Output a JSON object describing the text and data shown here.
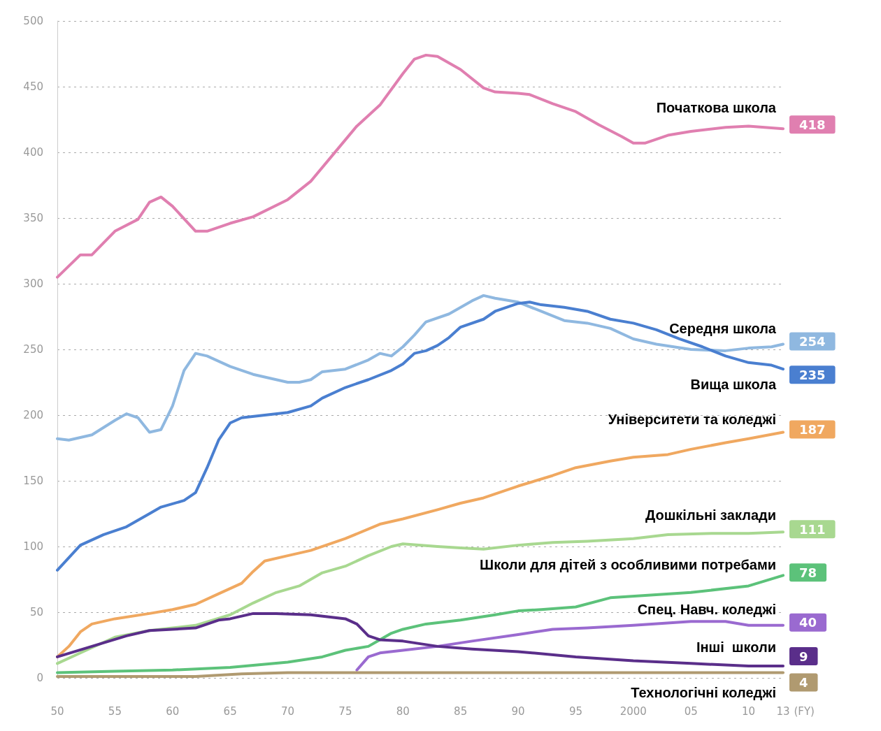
{
  "chart_data": {
    "type": "line",
    "xlim": [
      1950,
      2013
    ],
    "ylim": [
      0,
      500
    ],
    "xticks": [
      {
        "value": 1950,
        "label": "50"
      },
      {
        "value": 1955,
        "label": "55"
      },
      {
        "value": 1960,
        "label": "60"
      },
      {
        "value": 1965,
        "label": "65"
      },
      {
        "value": 1970,
        "label": "70"
      },
      {
        "value": 1975,
        "label": "75"
      },
      {
        "value": 1980,
        "label": "80"
      },
      {
        "value": 1985,
        "label": "85"
      },
      {
        "value": 1990,
        "label": "90"
      },
      {
        "value": 1995,
        "label": "95"
      },
      {
        "value": 2000,
        "label": "2000"
      },
      {
        "value": 2005,
        "label": "05"
      },
      {
        "value": 2010,
        "label": "10"
      },
      {
        "value": 2013,
        "label": "13"
      }
    ],
    "xlabel": "(FY)",
    "yticks": [
      0,
      50,
      100,
      150,
      200,
      250,
      300,
      350,
      400,
      450,
      500
    ],
    "grid": "y",
    "legend": "right",
    "line_style": "solid",
    "series": [
      {
        "name": "Початкова школа",
        "color": "#e07fb0",
        "x": [
          1950,
          1952,
          1953,
          1955,
          1957,
          1958,
          1959,
          1960,
          1962,
          1963,
          1965,
          1967,
          1970,
          1972,
          1974,
          1976,
          1978,
          1980,
          1981,
          1982,
          1983,
          1985,
          1987,
          1988,
          1990,
          1991,
          1993,
          1995,
          1997,
          1999,
          2000,
          2001,
          2003,
          2005,
          2008,
          2010,
          2013
        ],
        "values": [
          305,
          322,
          322,
          340,
          349,
          362,
          366,
          359,
          340,
          340,
          346,
          351,
          364,
          378,
          399,
          420,
          436,
          460,
          471,
          474,
          473,
          463,
          449,
          446,
          445,
          444,
          437,
          431,
          421,
          412,
          407,
          407,
          413,
          416,
          419,
          420,
          418
        ],
        "value_labels": [
          null,
          null,
          null,
          null,
          null,
          null,
          null,
          null,
          null,
          null,
          null,
          null,
          null,
          null,
          null,
          null,
          null,
          null,
          null,
          null,
          null,
          null,
          null,
          null,
          null,
          null,
          null,
          null,
          null,
          null,
          null,
          null,
          null,
          null,
          null,
          null,
          "418"
        ]
      },
      {
        "name": "Середня школа",
        "color": "#8fb8e0",
        "x": [
          1950,
          1951,
          1953,
          1955,
          1956,
          1957,
          1958,
          1959,
          1960,
          1961,
          1962,
          1963,
          1965,
          1967,
          1969,
          1970,
          1971,
          1972,
          1973,
          1975,
          1977,
          1978,
          1979,
          1980,
          1981,
          1982,
          1984,
          1986,
          1987,
          1988,
          1990,
          1992,
          1994,
          1996,
          1998,
          2000,
          2002,
          2005,
          2008,
          2010,
          2012,
          2013
        ],
        "values": [
          182,
          181,
          185,
          196,
          201,
          198,
          187,
          189,
          207,
          234,
          247,
          245,
          237,
          231,
          227,
          225,
          225,
          227,
          233,
          235,
          242,
          247,
          245,
          252,
          261,
          271,
          277,
          287,
          291,
          289,
          286,
          279,
          272,
          270,
          266,
          258,
          254,
          250,
          249,
          251,
          252,
          254
        ],
        "value_labels": [
          null,
          null,
          null,
          null,
          null,
          null,
          null,
          null,
          null,
          null,
          null,
          null,
          null,
          null,
          null,
          null,
          null,
          null,
          null,
          null,
          null,
          null,
          null,
          null,
          null,
          null,
          null,
          null,
          null,
          null,
          null,
          null,
          null,
          null,
          null,
          null,
          null,
          null,
          null,
          null,
          null,
          "254"
        ]
      },
      {
        "name": "Вища школа",
        "color": "#4a7fd0",
        "x": [
          1950,
          1952,
          1954,
          1956,
          1958,
          1959,
          1961,
          1962,
          1963,
          1964,
          1965,
          1966,
          1968,
          1970,
          1972,
          1973,
          1975,
          1977,
          1979,
          1980,
          1981,
          1982,
          1983,
          1984,
          1985,
          1987,
          1988,
          1990,
          1991,
          1992,
          1994,
          1996,
          1998,
          2000,
          2002,
          2004,
          2006,
          2008,
          2010,
          2012,
          2013
        ],
        "values": [
          82,
          101,
          109,
          115,
          125,
          130,
          135,
          141,
          160,
          181,
          194,
          198,
          200,
          202,
          207,
          213,
          221,
          227,
          234,
          239,
          247,
          249,
          253,
          259,
          267,
          273,
          279,
          285,
          286,
          284,
          282,
          279,
          273,
          270,
          265,
          258,
          252,
          245,
          240,
          238,
          235
        ],
        "value_labels": [
          null,
          null,
          null,
          null,
          null,
          null,
          null,
          null,
          null,
          null,
          null,
          null,
          null,
          null,
          null,
          null,
          null,
          null,
          null,
          null,
          null,
          null,
          null,
          null,
          null,
          null,
          null,
          null,
          null,
          null,
          null,
          null,
          null,
          null,
          null,
          null,
          null,
          null,
          null,
          null,
          "235"
        ]
      },
      {
        "name": "Університети та коледжі",
        "color": "#f0a860",
        "x": [
          1950,
          1951,
          1952,
          1953,
          1955,
          1958,
          1960,
          1962,
          1964,
          1966,
          1967,
          1968,
          1970,
          1972,
          1975,
          1978,
          1980,
          1983,
          1985,
          1987,
          1990,
          1993,
          1995,
          1998,
          2000,
          2003,
          2005,
          2008,
          2010,
          2013
        ],
        "values": [
          16,
          24,
          35,
          41,
          45,
          49,
          52,
          56,
          64,
          72,
          81,
          89,
          93,
          97,
          106,
          117,
          121,
          128,
          133,
          137,
          146,
          154,
          160,
          165,
          168,
          170,
          174,
          179,
          182,
          187
        ],
        "value_labels": [
          null,
          null,
          null,
          null,
          null,
          null,
          null,
          null,
          null,
          null,
          null,
          null,
          null,
          null,
          null,
          null,
          null,
          null,
          null,
          null,
          null,
          null,
          null,
          null,
          null,
          null,
          null,
          null,
          null,
          "187"
        ]
      },
      {
        "name": "Дошкільні заклади",
        "color": "#a8d890",
        "x": [
          1950,
          1952,
          1955,
          1958,
          1960,
          1962,
          1965,
          1967,
          1969,
          1971,
          1973,
          1975,
          1977,
          1979,
          1980,
          1983,
          1985,
          1987,
          1990,
          1993,
          1996,
          2000,
          2003,
          2007,
          2010,
          2013
        ],
        "values": [
          11,
          19,
          31,
          36,
          38,
          40,
          48,
          57,
          65,
          70,
          80,
          85,
          93,
          100,
          102,
          100,
          99,
          98,
          101,
          103,
          104,
          106,
          109,
          110,
          110,
          111
        ],
        "value_labels": [
          null,
          null,
          null,
          null,
          null,
          null,
          null,
          null,
          null,
          null,
          null,
          null,
          null,
          null,
          null,
          null,
          null,
          null,
          null,
          null,
          null,
          null,
          null,
          null,
          null,
          "111"
        ]
      },
      {
        "name": "Школи для дітей з особливими потребами",
        "color": "#5cc27a",
        "x": [
          1950,
          1955,
          1960,
          1965,
          1970,
          1973,
          1975,
          1977,
          1978,
          1979,
          1980,
          1982,
          1985,
          1988,
          1990,
          1992,
          1995,
          1998,
          2005,
          2010,
          2013
        ],
        "values": [
          4,
          5,
          6,
          8,
          12,
          16,
          21,
          24,
          29,
          34,
          37,
          41,
          44,
          48,
          51,
          52,
          54,
          61,
          65,
          70,
          78
        ],
        "value_labels": [
          null,
          null,
          null,
          null,
          null,
          null,
          null,
          null,
          null,
          null,
          null,
          null,
          null,
          null,
          null,
          null,
          null,
          null,
          null,
          null,
          "78"
        ]
      },
      {
        "name": "Спец. Навч. коледжі",
        "color": "#9a6ad0",
        "x": [
          1976,
          1977,
          1978,
          1980,
          1983,
          1986,
          1990,
          1993,
          1996,
          2000,
          2005,
          2008,
          2010,
          2013
        ],
        "values": [
          6,
          16,
          19,
          21,
          24,
          28,
          33,
          37,
          38,
          40,
          43,
          43,
          40,
          40
        ],
        "value_labels": [
          null,
          null,
          null,
          null,
          null,
          null,
          null,
          null,
          null,
          null,
          null,
          null,
          null,
          "40"
        ]
      },
      {
        "name": "Інші  школи",
        "color": "#5a2e8a",
        "x": [
          1950,
          1953,
          1956,
          1958,
          1960,
          1962,
          1964,
          1965,
          1967,
          1969,
          1972,
          1975,
          1976,
          1977,
          1978,
          1980,
          1983,
          1986,
          1990,
          1995,
          2000,
          2005,
          2010,
          2013
        ],
        "values": [
          16,
          24,
          32,
          36,
          37,
          38,
          44,
          45,
          49,
          49,
          48,
          45,
          41,
          32,
          29,
          28,
          24,
          22,
          20,
          16,
          13,
          11,
          9,
          9
        ],
        "value_labels": [
          null,
          null,
          null,
          null,
          null,
          null,
          null,
          null,
          null,
          null,
          null,
          null,
          null,
          null,
          null,
          null,
          null,
          null,
          null,
          null,
          null,
          null,
          null,
          "9"
        ]
      },
      {
        "name": "Технологічні коледжі",
        "color": "#b09a70",
        "x": [
          1950,
          1962,
          1966,
          1970,
          2013
        ],
        "values": [
          1,
          1,
          3,
          4,
          4
        ],
        "value_labels": [
          null,
          null,
          null,
          null,
          "4"
        ]
      }
    ]
  }
}
